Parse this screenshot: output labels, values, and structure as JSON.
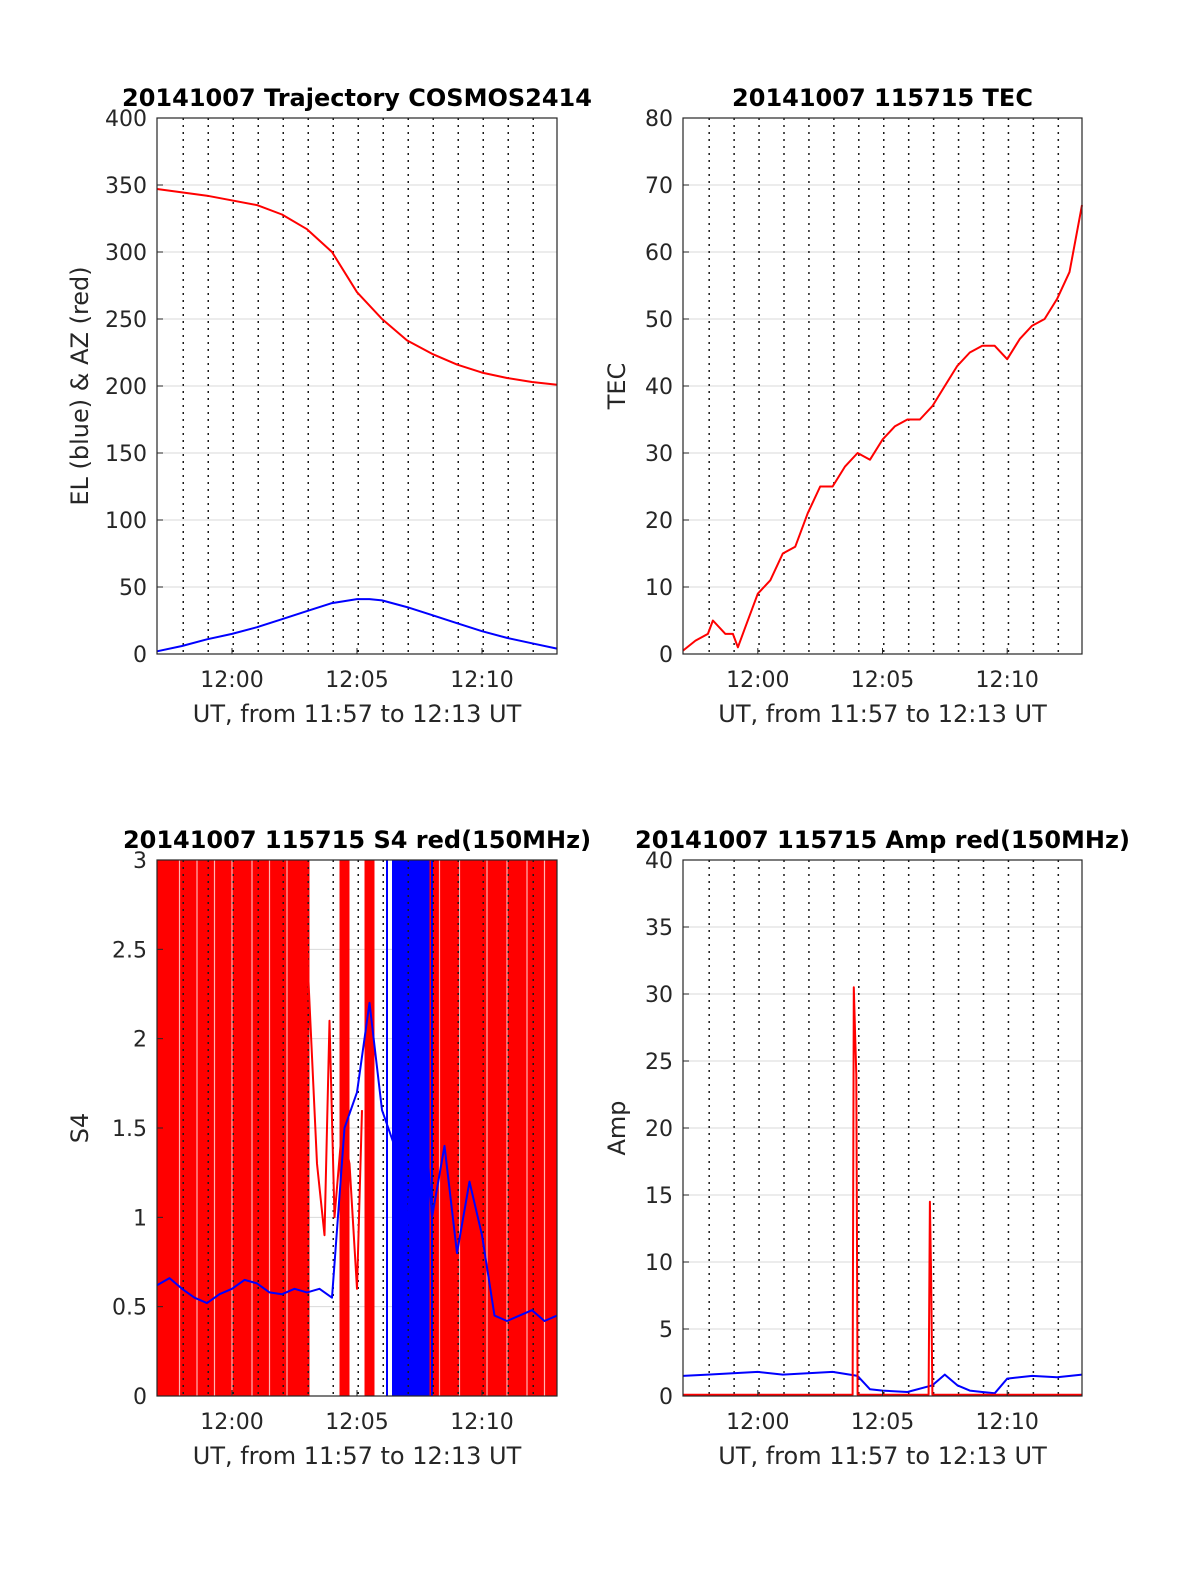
{
  "chart_data": [
    {
      "type": "line",
      "title": "20141007 Trajectory COSMOS2414",
      "xlabel": "UT, from 11:57 to 12:13 UT",
      "ylabel": "EL (blue) & AZ (red)",
      "xlim": [
        0,
        16
      ],
      "ylim": [
        0,
        400
      ],
      "x_ticks": [
        {
          "value": 3,
          "label": "12:00"
        },
        {
          "value": 8,
          "label": "12:05"
        },
        {
          "value": 13,
          "label": "12:10"
        }
      ],
      "y_ticks": [
        0,
        50,
        100,
        150,
        200,
        250,
        300,
        350,
        400
      ],
      "grid": true,
      "series": [
        {
          "color": "#ff0000",
          "x": [
            0,
            2,
            4,
            5,
            6,
            7,
            8,
            9,
            10,
            11,
            12,
            13,
            14,
            15,
            16
          ],
          "y": [
            347,
            342,
            335,
            328,
            317,
            300,
            270,
            250,
            234,
            224,
            216,
            210,
            206,
            203,
            201
          ]
        },
        {
          "color": "#0000ff",
          "x": [
            0,
            1,
            2,
            3,
            4,
            5,
            6,
            7,
            8,
            8.5,
            9,
            10,
            11,
            12,
            13,
            14,
            15,
            16
          ],
          "y": [
            2,
            6,
            11,
            15,
            20,
            26,
            32,
            38,
            41,
            41,
            40,
            35,
            29,
            23,
            17,
            12,
            8,
            4
          ]
        }
      ]
    },
    {
      "type": "line",
      "title": "20141007 115715 TEC",
      "xlabel": "UT, from 11:57 to 12:13 UT",
      "ylabel": "TEC",
      "xlim": [
        0,
        16
      ],
      "ylim": [
        0,
        80
      ],
      "x_ticks": [
        {
          "value": 3,
          "label": "12:00"
        },
        {
          "value": 8,
          "label": "12:05"
        },
        {
          "value": 13,
          "label": "12:10"
        }
      ],
      "y_ticks": [
        0,
        10,
        20,
        30,
        40,
        50,
        60,
        70,
        80
      ],
      "grid": true,
      "series": [
        {
          "color": "#ff0000",
          "x": [
            0,
            0.5,
            1,
            1.2,
            1.7,
            2,
            2.2,
            2.5,
            3,
            3.5,
            4,
            4.5,
            5,
            5.5,
            6,
            6.5,
            7,
            7.5,
            8,
            8.5,
            9,
            9.5,
            10,
            10.5,
            11,
            11.5,
            12,
            12.5,
            13,
            13.5,
            14,
            14.5,
            15,
            15.5,
            16
          ],
          "y": [
            0.5,
            2,
            3,
            5,
            3,
            3,
            1,
            4,
            9,
            11,
            15,
            16,
            21,
            25,
            25,
            28,
            30,
            29,
            32,
            34,
            35,
            35,
            37,
            40,
            43,
            45,
            46,
            46,
            44,
            47,
            49,
            50,
            53,
            57,
            67
          ]
        }
      ]
    },
    {
      "type": "line",
      "title": "20141007 115715 S4 red(150MHz)",
      "xlabel": "UT, from 11:57 to 12:13 UT",
      "ylabel": "S4",
      "xlim": [
        0,
        16
      ],
      "ylim": [
        0,
        3
      ],
      "x_ticks": [
        {
          "value": 3,
          "label": "12:00"
        },
        {
          "value": 8,
          "label": "12:05"
        },
        {
          "value": 13,
          "label": "12:10"
        }
      ],
      "y_ticks": [
        {
          "value": 0,
          "label": "0"
        },
        {
          "value": 0.5,
          "label": "0.5"
        },
        {
          "value": 1,
          "label": "1"
        },
        {
          "value": 1.5,
          "label": "1.5"
        },
        {
          "value": 2,
          "label": "2"
        },
        {
          "value": 2.5,
          "label": "2.5"
        },
        {
          "value": 3,
          "label": "3"
        }
      ],
      "grid": true,
      "series": [
        {
          "color": "#ff0000",
          "x": [
            5.9,
            6.2,
            6.4,
            6.7,
            6.9,
            7.1,
            7.4,
            7.7,
            8.0,
            8.2
          ],
          "y": [
            2.8,
            1.9,
            1.3,
            0.9,
            2.1,
            1.0,
            1.5,
            1.3,
            0.6,
            1.6
          ]
        },
        {
          "color": "#0000ff",
          "x": [
            0,
            0.5,
            1,
            1.5,
            2,
            2.5,
            3,
            3.5,
            4,
            4.5,
            5,
            5.5,
            6,
            6.5,
            7,
            7.5,
            8,
            8.5,
            9,
            9.5,
            10,
            10.5,
            11,
            11.5,
            12,
            12.5,
            13,
            13.5,
            14,
            14.5,
            15,
            15.5,
            16
          ],
          "y": [
            0.62,
            0.66,
            0.6,
            0.55,
            0.52,
            0.57,
            0.6,
            0.65,
            0.63,
            0.58,
            0.57,
            0.6,
            0.58,
            0.6,
            0.55,
            1.5,
            1.7,
            2.2,
            1.6,
            1.4,
            0.9,
            2.0,
            1.0,
            1.4,
            0.8,
            1.2,
            0.9,
            0.45,
            0.42,
            0.45,
            0.48,
            0.42,
            0.45
          ]
        }
      ],
      "red_fill_bands": [
        [
          0,
          6.1
        ],
        [
          7.3,
          7.7
        ],
        [
          8.3,
          8.7
        ],
        [
          9.8,
          10.3
        ],
        [
          10.7,
          16
        ]
      ]
    },
    {
      "type": "line",
      "title": "20141007 115715 Amp red(150MHz)",
      "xlabel": "UT, from 11:57 to 12:13 UT",
      "ylabel": "Amp",
      "xlim": [
        0,
        16
      ],
      "ylim": [
        0,
        40
      ],
      "x_ticks": [
        {
          "value": 3,
          "label": "12:00"
        },
        {
          "value": 8,
          "label": "12:05"
        },
        {
          "value": 13,
          "label": "12:10"
        }
      ],
      "y_ticks": [
        0,
        5,
        10,
        15,
        20,
        25,
        30,
        35,
        40
      ],
      "grid": true,
      "series": [
        {
          "color": "#0000ff",
          "x": [
            0,
            1,
            2,
            3,
            4,
            5,
            6,
            7,
            7.5,
            8,
            9,
            10,
            10.5,
            11,
            11.5,
            12,
            12.5,
            13,
            14,
            15,
            16
          ],
          "y": [
            1.5,
            1.6,
            1.7,
            1.8,
            1.6,
            1.7,
            1.8,
            1.5,
            0.5,
            0.4,
            0.3,
            0.8,
            1.6,
            0.8,
            0.4,
            0.3,
            0.2,
            1.3,
            1.5,
            1.4,
            1.6
          ]
        },
        {
          "color": "#ff0000",
          "x": [
            0,
            6.8,
            6.85,
            6.9,
            6.95,
            7.0,
            9.85,
            9.9,
            9.95,
            10.0,
            16
          ],
          "y": [
            0.1,
            0.1,
            30.5,
            27,
            24,
            0.1,
            0.1,
            14.5,
            9,
            0.1,
            0.1
          ]
        }
      ]
    }
  ]
}
